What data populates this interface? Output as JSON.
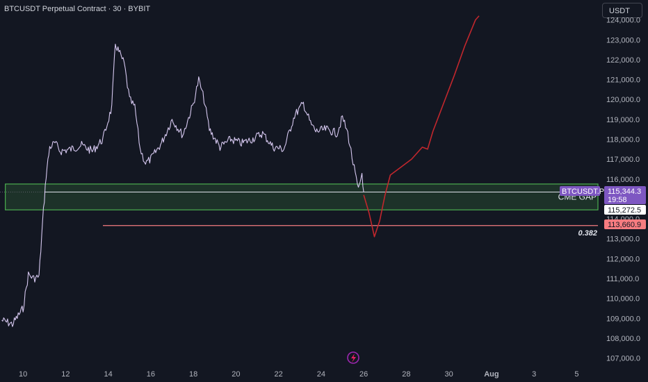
{
  "header": {
    "title": "BTCUSDT Perpetual Contract · 30 · BYBIT",
    "currency_button": "USDT"
  },
  "colors": {
    "background": "#131722",
    "candles": "#d6c8f0",
    "projection": "#c2272d",
    "zone": "#4caf50",
    "fib_line": "#f77c80",
    "symbol_tag": "#7e57c2",
    "axis_text": "#b2b5be"
  },
  "icons": {
    "watermark": "lightning-logo-icon"
  },
  "chart_data": {
    "type": "line",
    "title": "",
    "xlabel": "",
    "ylabel": "",
    "x_ticks": [
      {
        "label": "10",
        "date": "2025-07-10"
      },
      {
        "label": "12",
        "date": "2025-07-12"
      },
      {
        "label": "14",
        "date": "2025-07-14"
      },
      {
        "label": "16",
        "date": "2025-07-16"
      },
      {
        "label": "18",
        "date": "2025-07-18"
      },
      {
        "label": "20",
        "date": "2025-07-20"
      },
      {
        "label": "22",
        "date": "2025-07-22"
      },
      {
        "label": "24",
        "date": "2025-07-24"
      },
      {
        "label": "26",
        "date": "2025-07-26"
      },
      {
        "label": "28",
        "date": "2025-07-28"
      },
      {
        "label": "30",
        "date": "2025-07-30"
      },
      {
        "label": "Aug",
        "date": "2025-08-01"
      },
      {
        "label": "3",
        "date": "2025-08-03"
      },
      {
        "label": "5",
        "date": "2025-08-05"
      }
    ],
    "y_ticks": [
      "124,000.0",
      "123,000.0",
      "122,000.0",
      "121,000.0",
      "120,000.0",
      "119,000.0",
      "118,000.0",
      "117,000.0",
      "116,000.0",
      "115,000.0",
      "114,000.0",
      "113,000.0",
      "112,000.0",
      "111,000.0",
      "110,000.0",
      "109,000.0",
      "108,000.0",
      "107,000.0"
    ],
    "y_range": [
      106600,
      125000
    ],
    "x_range": [
      "2025-07-08 22:00",
      "2025-08-06 00:00"
    ],
    "series": [
      {
        "name": "",
        "style": "price",
        "points": [
          [
            "2025-07-09 00:00",
            108900
          ],
          [
            "2025-07-09 12:00",
            108700
          ],
          [
            "2025-07-10 00:00",
            109500
          ],
          [
            "2025-07-10 06:00",
            111200
          ],
          [
            "2025-07-10 12:00",
            111000
          ],
          [
            "2025-07-10 18:00",
            111100
          ],
          [
            "2025-07-10 22:00",
            113800
          ],
          [
            "2025-07-11 02:00",
            116200
          ],
          [
            "2025-07-11 06:00",
            117600
          ],
          [
            "2025-07-11 12:00",
            117800
          ],
          [
            "2025-07-11 18:00",
            117400
          ],
          [
            "2025-07-12 06:00",
            117500
          ],
          [
            "2025-07-12 18:00",
            117700
          ],
          [
            "2025-07-13 06:00",
            117400
          ],
          [
            "2025-07-13 18:00",
            118000
          ],
          [
            "2025-07-14 04:00",
            119600
          ],
          [
            "2025-07-14 08:00",
            122800
          ],
          [
            "2025-07-14 12:00",
            122400
          ],
          [
            "2025-07-14 18:00",
            121800
          ],
          [
            "2025-07-15 00:00",
            120000
          ],
          [
            "2025-07-15 06:00",
            119600
          ],
          [
            "2025-07-15 12:00",
            117500
          ],
          [
            "2025-07-15 18:00",
            116800
          ],
          [
            "2025-07-16 00:00",
            117000
          ],
          [
            "2025-07-16 12:00",
            117800
          ],
          [
            "2025-07-17 00:00",
            119000
          ],
          [
            "2025-07-17 12:00",
            118200
          ],
          [
            "2025-07-18 00:00",
            119800
          ],
          [
            "2025-07-18 06:00",
            121000
          ],
          [
            "2025-07-18 12:00",
            120000
          ],
          [
            "2025-07-18 18:00",
            118500
          ],
          [
            "2025-07-19 06:00",
            117600
          ],
          [
            "2025-07-19 18:00",
            118000
          ],
          [
            "2025-07-20 06:00",
            117800
          ],
          [
            "2025-07-20 18:00",
            118000
          ],
          [
            "2025-07-21 06:00",
            118300
          ],
          [
            "2025-07-21 18:00",
            117600
          ],
          [
            "2025-07-22 06:00",
            117500
          ],
          [
            "2025-07-22 18:00",
            119200
          ],
          [
            "2025-07-23 04:00",
            119800
          ],
          [
            "2025-07-23 12:00",
            118800
          ],
          [
            "2025-07-23 18:00",
            118400
          ],
          [
            "2025-07-24 06:00",
            118500
          ],
          [
            "2025-07-24 18:00",
            118300
          ],
          [
            "2025-07-25 00:00",
            119100
          ],
          [
            "2025-07-25 06:00",
            118300
          ],
          [
            "2025-07-25 12:00",
            116800
          ],
          [
            "2025-07-25 18:00",
            115400
          ],
          [
            "2025-07-25 22:00",
            116300
          ],
          [
            "2025-07-26 00:00",
            115344
          ]
        ]
      },
      {
        "name": "",
        "style": "projection",
        "points": [
          [
            "2025-07-26 00:00",
            115200
          ],
          [
            "2025-07-26 06:00",
            114300
          ],
          [
            "2025-07-26 12:00",
            113100
          ],
          [
            "2025-07-26 18:00",
            113900
          ],
          [
            "2025-07-27 00:00",
            115200
          ],
          [
            "2025-07-27 06:00",
            116200
          ],
          [
            "2025-07-27 18:00",
            116600
          ],
          [
            "2025-07-28 06:00",
            117000
          ],
          [
            "2025-07-28 18:00",
            117600
          ],
          [
            "2025-07-29 00:00",
            117500
          ],
          [
            "2025-07-29 06:00",
            118400
          ],
          [
            "2025-07-29 18:00",
            119800
          ],
          [
            "2025-07-30 06:00",
            121200
          ],
          [
            "2025-07-30 18:00",
            122700
          ],
          [
            "2025-07-31 06:00",
            124000
          ],
          [
            "2025-07-31 10:00",
            124200
          ]
        ]
      }
    ],
    "zones": [
      {
        "label": "CME GAP",
        "top": 115750,
        "bottom": 114450,
        "from": "2025-07-09 04:00",
        "to": "2025-08-06 00:00"
      }
    ],
    "levels": [
      {
        "label": "0.382",
        "value": 113660.9,
        "from": "2025-07-13 18:00"
      },
      {
        "label": "",
        "value": 115344.3,
        "from": "2025-07-11 00:00",
        "style": "current"
      }
    ],
    "price_tags": [
      {
        "label": "BTCUSDT.P",
        "value": "115,344.3",
        "countdown": "19:58",
        "price": 115344.3
      },
      {
        "label": "",
        "value": "115,272.5",
        "price": 115272.5
      },
      {
        "label": "",
        "value": "113,660.9",
        "price": 113660.9
      }
    ]
  }
}
